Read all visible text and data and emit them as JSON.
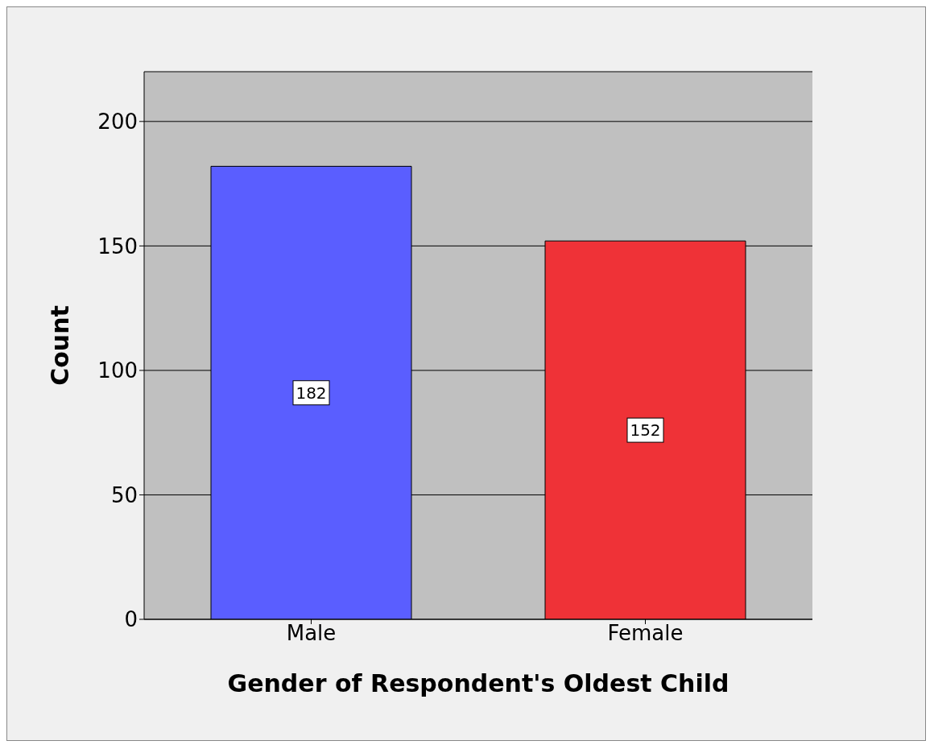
{
  "chart_data": {
    "type": "bar",
    "xlabel": "Gender of Respondent's Oldest Child",
    "ylabel": "Count",
    "categories": [
      "Male",
      "Female"
    ],
    "values": [
      182,
      152
    ],
    "colors": [
      "#5a5eff",
      "#ef3237"
    ],
    "ylim": [
      0,
      220
    ],
    "yticks": [
      0,
      50,
      100,
      150,
      200
    ],
    "grid": "y",
    "data_labels": true
  }
}
